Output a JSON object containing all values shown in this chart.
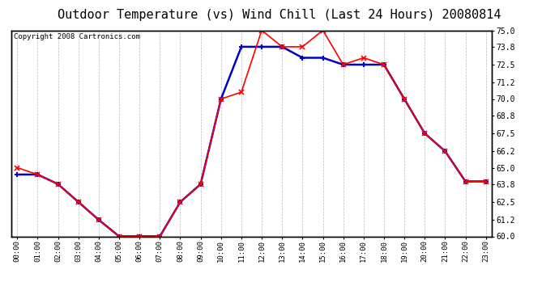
{
  "title": "Outdoor Temperature (vs) Wind Chill (Last 24 Hours) 20080814",
  "copyright": "Copyright 2008 Cartronics.com",
  "x_labels": [
    "00:00",
    "01:00",
    "02:00",
    "03:00",
    "04:00",
    "05:00",
    "06:00",
    "07:00",
    "08:00",
    "09:00",
    "10:00",
    "11:00",
    "12:00",
    "13:00",
    "14:00",
    "15:00",
    "16:00",
    "17:00",
    "18:00",
    "19:00",
    "20:00",
    "21:00",
    "22:00",
    "23:00"
  ],
  "outdoor_temp": [
    65.0,
    64.5,
    63.8,
    62.5,
    61.2,
    60.0,
    60.0,
    60.0,
    62.5,
    63.8,
    70.0,
    70.5,
    75.0,
    73.8,
    73.8,
    75.0,
    72.5,
    73.0,
    72.5,
    70.0,
    67.5,
    66.2,
    64.0,
    64.0
  ],
  "wind_chill": [
    64.5,
    64.5,
    63.8,
    62.5,
    61.2,
    60.0,
    60.0,
    60.0,
    62.5,
    63.8,
    70.0,
    73.8,
    73.8,
    73.8,
    73.0,
    73.0,
    72.5,
    72.5,
    72.5,
    70.0,
    67.5,
    66.2,
    64.0,
    64.0
  ],
  "temp_color": "#ff0000",
  "chill_color": "#0000cc",
  "ylim_min": 60.0,
  "ylim_max": 75.0,
  "yticks": [
    60.0,
    61.2,
    62.5,
    63.8,
    65.0,
    66.2,
    67.5,
    68.8,
    70.0,
    71.2,
    72.5,
    73.8,
    75.0
  ],
  "bg_color": "#ffffff",
  "plot_bg_color": "#ffffff",
  "grid_color": "#bbbbbb",
  "title_fontsize": 11,
  "copyright_fontsize": 6.5
}
